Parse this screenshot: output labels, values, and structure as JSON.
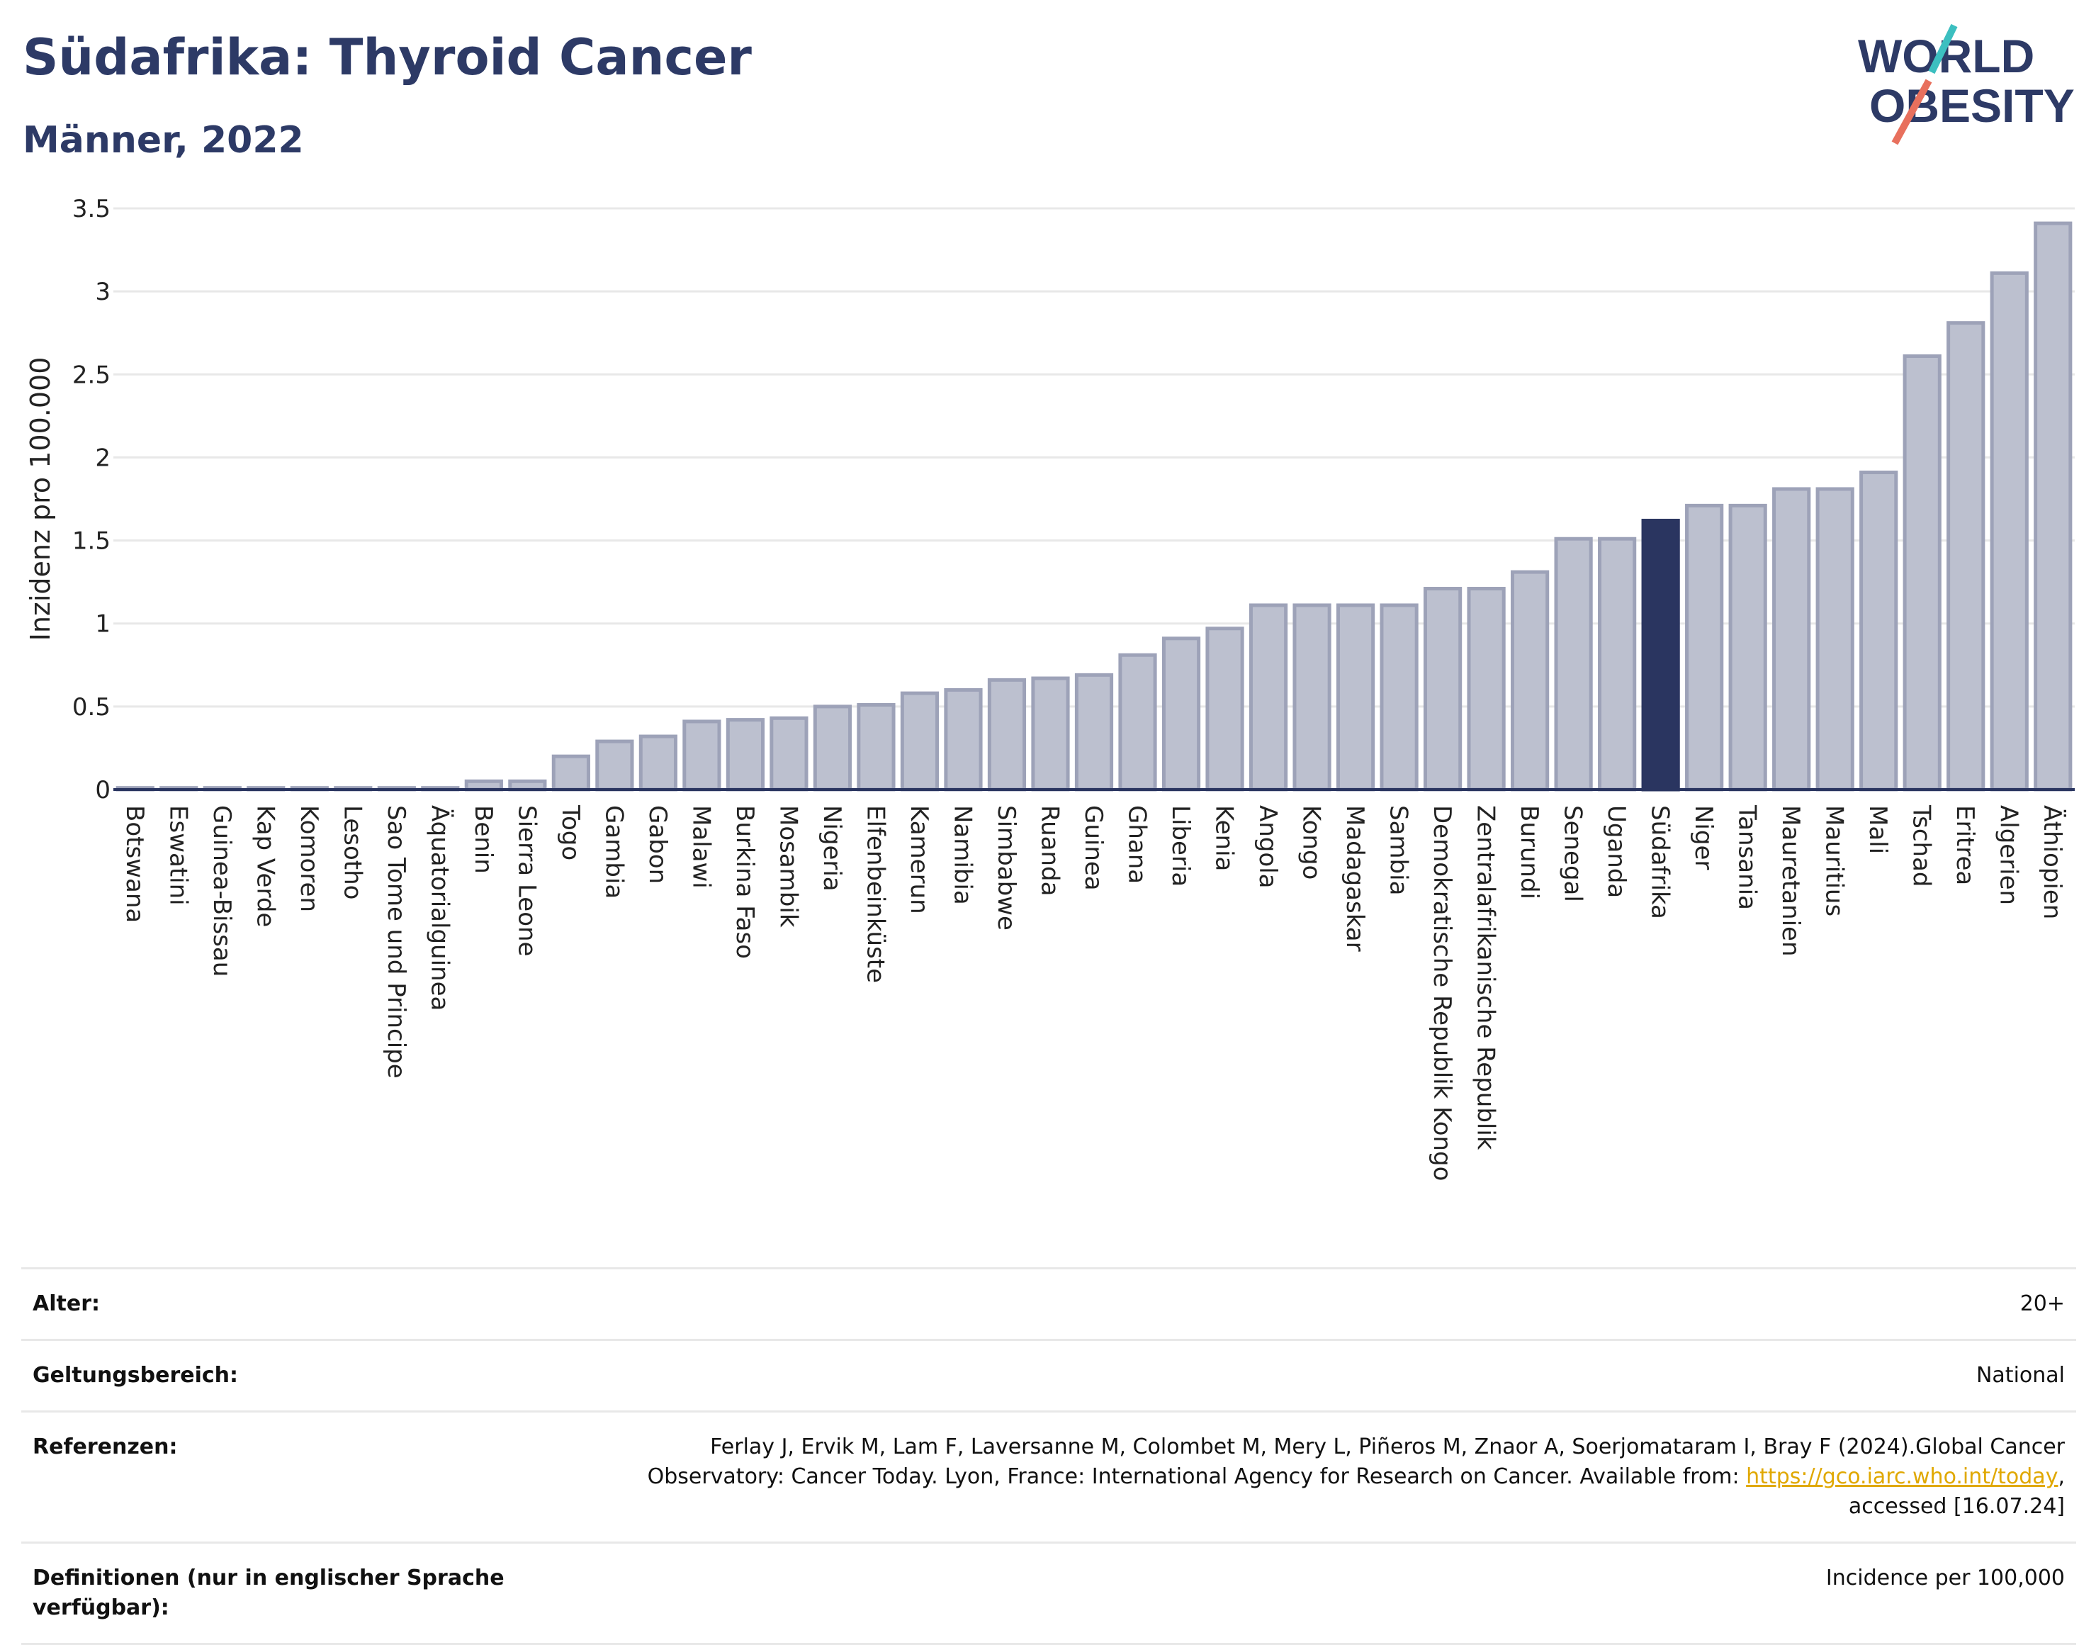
{
  "header": {
    "title": "Südafrika: Thyroid Cancer",
    "subtitle": "Männer, 2022",
    "logo": {
      "line1": "WORLD",
      "line2": "OBESITY"
    }
  },
  "colors": {
    "bar": "#bcc0cf",
    "bar_border": "#9da2b8",
    "highlight": "#2a3560",
    "grid": "#e8e8e8"
  },
  "chart_data": {
    "type": "bar",
    "title": "Südafrika: Thyroid Cancer",
    "subtitle": "Männer, 2022",
    "ylabel": "Inzidenz pro 100.000",
    "xlabel": "",
    "ylim": [
      0,
      3.5
    ],
    "yticks": [
      {
        "value": 0,
        "label": "0"
      },
      {
        "value": 0.5,
        "label": "0.5"
      },
      {
        "value": 1,
        "label": "1"
      },
      {
        "value": 1.5,
        "label": "1.5"
      },
      {
        "value": 2,
        "label": "2"
      },
      {
        "value": 2.5,
        "label": "2.5"
      },
      {
        "value": 3,
        "label": "3"
      },
      {
        "value": 3.5,
        "label": "3.5"
      }
    ],
    "grid": true,
    "highlight": "Südafrika",
    "categories": [
      "Botswana",
      "Eswatini",
      "Guinea-Bissau",
      "Kap Verde",
      "Komoren",
      "Lesotho",
      "Sao Tome und Principe",
      "Äquatorialguinea",
      "Benin",
      "Sierra Leone",
      "Togo",
      "Gambia",
      "Gabon",
      "Malawi",
      "Burkina Faso",
      "Mosambik",
      "Nigeria",
      "Elfenbeinküste",
      "Kamerun",
      "Namibia",
      "Simbabwe",
      "Ruanda",
      "Guinea",
      "Ghana",
      "Liberia",
      "Kenia",
      "Angola",
      "Kongo",
      "Madagaskar",
      "Sambia",
      "Demokratische Republik Kongo",
      "Zentralafrikanische Republik",
      "Burundi",
      "Senegal",
      "Uganda",
      "Südafrika",
      "Niger",
      "Tansania",
      "Mauretanien",
      "Mauritius",
      "Mali",
      "Tschad",
      "Eritrea",
      "Algerien",
      "Äthiopien"
    ],
    "values": [
      0.01,
      0.01,
      0.01,
      0.01,
      0.01,
      0.01,
      0.01,
      0.01,
      0.05,
      0.05,
      0.2,
      0.29,
      0.32,
      0.41,
      0.42,
      0.43,
      0.5,
      0.51,
      0.58,
      0.6,
      0.66,
      0.67,
      0.69,
      0.81,
      0.91,
      0.97,
      1.11,
      1.11,
      1.11,
      1.11,
      1.21,
      1.21,
      1.31,
      1.51,
      1.51,
      1.62,
      1.71,
      1.71,
      1.81,
      1.81,
      1.91,
      2.61,
      2.81,
      3.11,
      3.41
    ]
  },
  "meta": [
    {
      "label": "Alter:",
      "value": "20+"
    },
    {
      "label": "Geltungsbereich:",
      "value": "National"
    },
    {
      "label": "Referenzen:",
      "value_pre": "Ferlay J, Ervik M, Lam F, Laversanne M, Colombet M, Mery L, Piñeros M, Znaor A, Soerjomataram I, Bray F (2024).Global Cancer Observatory: Cancer Today. Lyon, France: International Agency for Research on Cancer. Available from: ",
      "link": "https://gco.iarc.who.int/today",
      "value_post": ", accessed [16.07.24]"
    },
    {
      "label": "Definitionen (nur in englischer Sprache verfügbar):",
      "value": "Incidence per 100,000"
    }
  ]
}
